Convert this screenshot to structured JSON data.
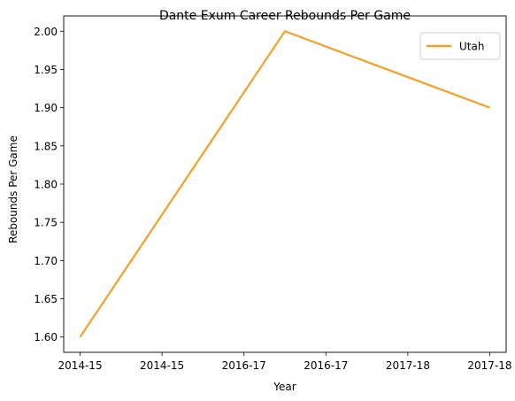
{
  "chart_data": {
    "type": "line",
    "title": "Dante Exum Career Rebounds Per Game",
    "xlabel": "Year",
    "ylabel": "Rebounds Per Game",
    "x_tick_labels": [
      "2014-15",
      "2014-15",
      "2016-17",
      "2016-17",
      "2017-18",
      "2017-18"
    ],
    "x_ticks": [
      0,
      1,
      2,
      3,
      4,
      5
    ],
    "xlim": [
      -0.2,
      5.2
    ],
    "ylim": [
      1.58,
      2.02
    ],
    "y_ticks": [
      1.6,
      1.65,
      1.7,
      1.75,
      1.8,
      1.85,
      1.9,
      1.95,
      2.0
    ],
    "y_tick_labels": [
      "1.60",
      "1.65",
      "1.70",
      "1.75",
      "1.80",
      "1.85",
      "1.90",
      "1.95",
      "2.00"
    ],
    "series": [
      {
        "name": "Utah",
        "color": "#f4a024",
        "x": [
          0,
          2.5,
          5
        ],
        "y": [
          1.6,
          2.0,
          1.9
        ]
      }
    ],
    "legend_position": "top-right",
    "grid": false
  }
}
